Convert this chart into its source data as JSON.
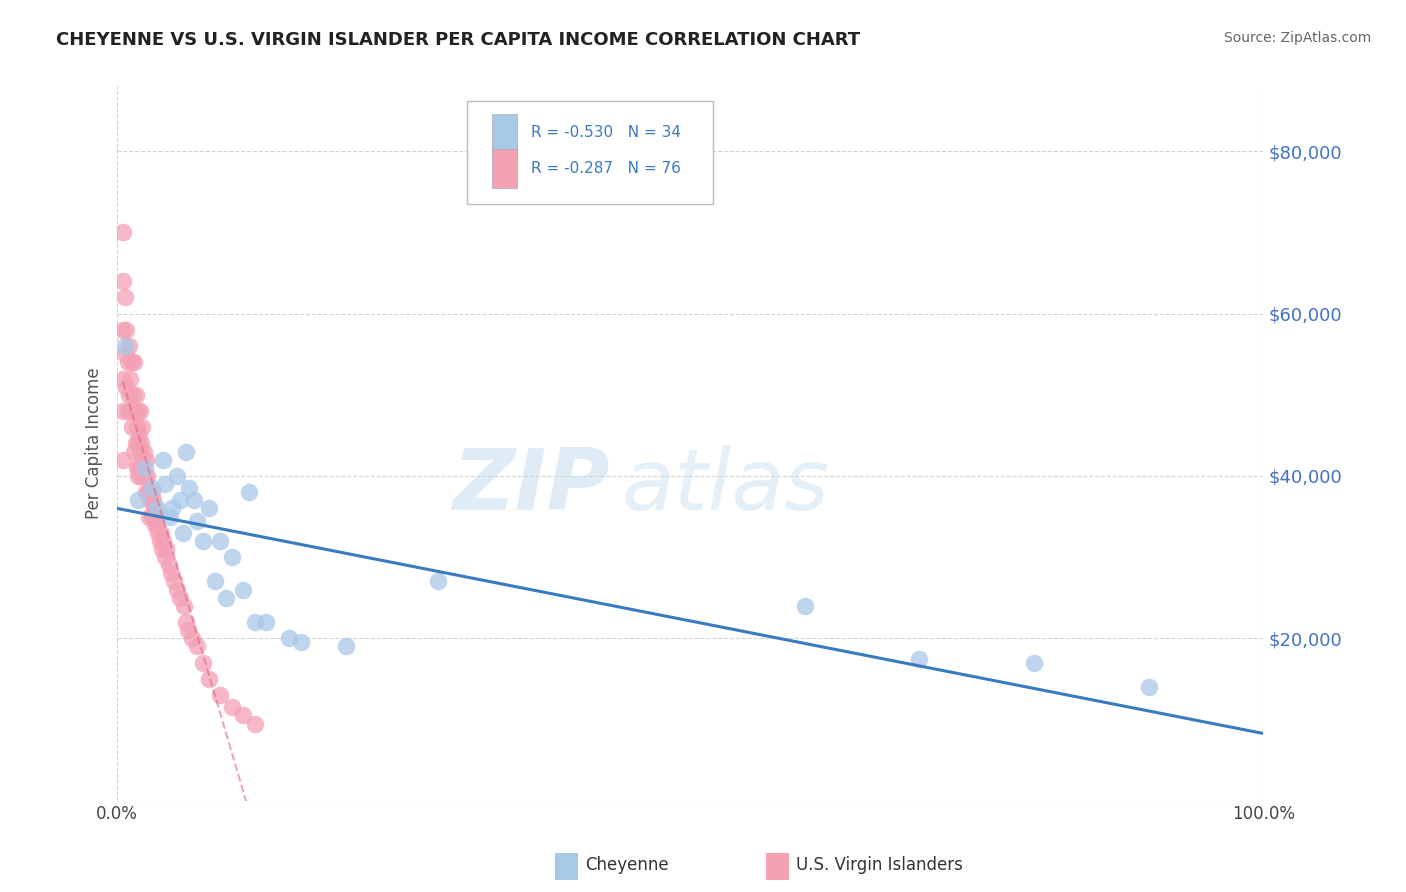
{
  "title": "CHEYENNE VS U.S. VIRGIN ISLANDER PER CAPITA INCOME CORRELATION CHART",
  "source": "Source: ZipAtlas.com",
  "ylabel": "Per Capita Income",
  "legend_cheyenne": "Cheyenne",
  "legend_usvi": "U.S. Virgin Islanders",
  "r_cheyenne": -0.53,
  "n_cheyenne": 34,
  "r_usvi": -0.287,
  "n_usvi": 76,
  "cheyenne_color": "#a8c8e8",
  "usvi_color": "#f4a0b5",
  "trend_cheyenne_color": "#3a7bbf",
  "trend_usvi_color": "#e06080",
  "y_ticks": [
    0,
    20000,
    40000,
    60000,
    80000
  ],
  "y_tick_labels": [
    "",
    "$20,000",
    "$40,000",
    "$60,000",
    "$80,000"
  ],
  "x_lim": [
    0,
    1.0
  ],
  "y_lim": [
    0,
    88000
  ],
  "background_color": "#ffffff",
  "grid_color": "#c8c8c8",
  "cheyenne_x": [
    0.007,
    0.018,
    0.024,
    0.03,
    0.035,
    0.04,
    0.042,
    0.046,
    0.048,
    0.052,
    0.055,
    0.057,
    0.06,
    0.063,
    0.067,
    0.07,
    0.075,
    0.08,
    0.085,
    0.09,
    0.095,
    0.1,
    0.11,
    0.115,
    0.12,
    0.13,
    0.15,
    0.16,
    0.2,
    0.28,
    0.6,
    0.7,
    0.8,
    0.9
  ],
  "cheyenne_y": [
    56000,
    37000,
    41000,
    38500,
    36000,
    42000,
    39000,
    35000,
    36000,
    40000,
    37000,
    33000,
    43000,
    38500,
    37000,
    34500,
    32000,
    36000,
    27000,
    32000,
    25000,
    30000,
    26000,
    38000,
    22000,
    22000,
    20000,
    19500,
    19000,
    27000,
    24000,
    17500,
    17000,
    14000
  ],
  "usvi_x": [
    0.005,
    0.005,
    0.005,
    0.005,
    0.005,
    0.005,
    0.007,
    0.007,
    0.008,
    0.008,
    0.009,
    0.009,
    0.01,
    0.01,
    0.011,
    0.012,
    0.013,
    0.013,
    0.014,
    0.015,
    0.015,
    0.015,
    0.016,
    0.016,
    0.017,
    0.017,
    0.018,
    0.018,
    0.018,
    0.019,
    0.019,
    0.02,
    0.02,
    0.021,
    0.021,
    0.022,
    0.022,
    0.023,
    0.024,
    0.025,
    0.025,
    0.026,
    0.027,
    0.028,
    0.028,
    0.029,
    0.03,
    0.03,
    0.031,
    0.032,
    0.033,
    0.034,
    0.035,
    0.036,
    0.037,
    0.038,
    0.039,
    0.04,
    0.042,
    0.043,
    0.045,
    0.047,
    0.05,
    0.052,
    0.055,
    0.058,
    0.06,
    0.062,
    0.065,
    0.07,
    0.075,
    0.08,
    0.09,
    0.1,
    0.11,
    0.12
  ],
  "usvi_y": [
    70000,
    64000,
    58000,
    52000,
    48000,
    42000,
    62000,
    55000,
    58000,
    51000,
    54000,
    48000,
    56000,
    50000,
    52000,
    48000,
    54000,
    46000,
    50000,
    54000,
    48000,
    43000,
    50000,
    44000,
    46000,
    41000,
    48000,
    44000,
    40000,
    45000,
    41000,
    48000,
    43000,
    44000,
    40000,
    46000,
    42000,
    43000,
    40000,
    42000,
    38000,
    40000,
    38000,
    38000,
    35000,
    37000,
    38000,
    35000,
    37000,
    36000,
    34000,
    35000,
    34000,
    33000,
    32000,
    33000,
    31000,
    32000,
    30000,
    31000,
    29000,
    28000,
    27000,
    26000,
    25000,
    24000,
    22000,
    21000,
    20000,
    19000,
    17000,
    15000,
    13000,
    11500,
    10500,
    9500
  ]
}
